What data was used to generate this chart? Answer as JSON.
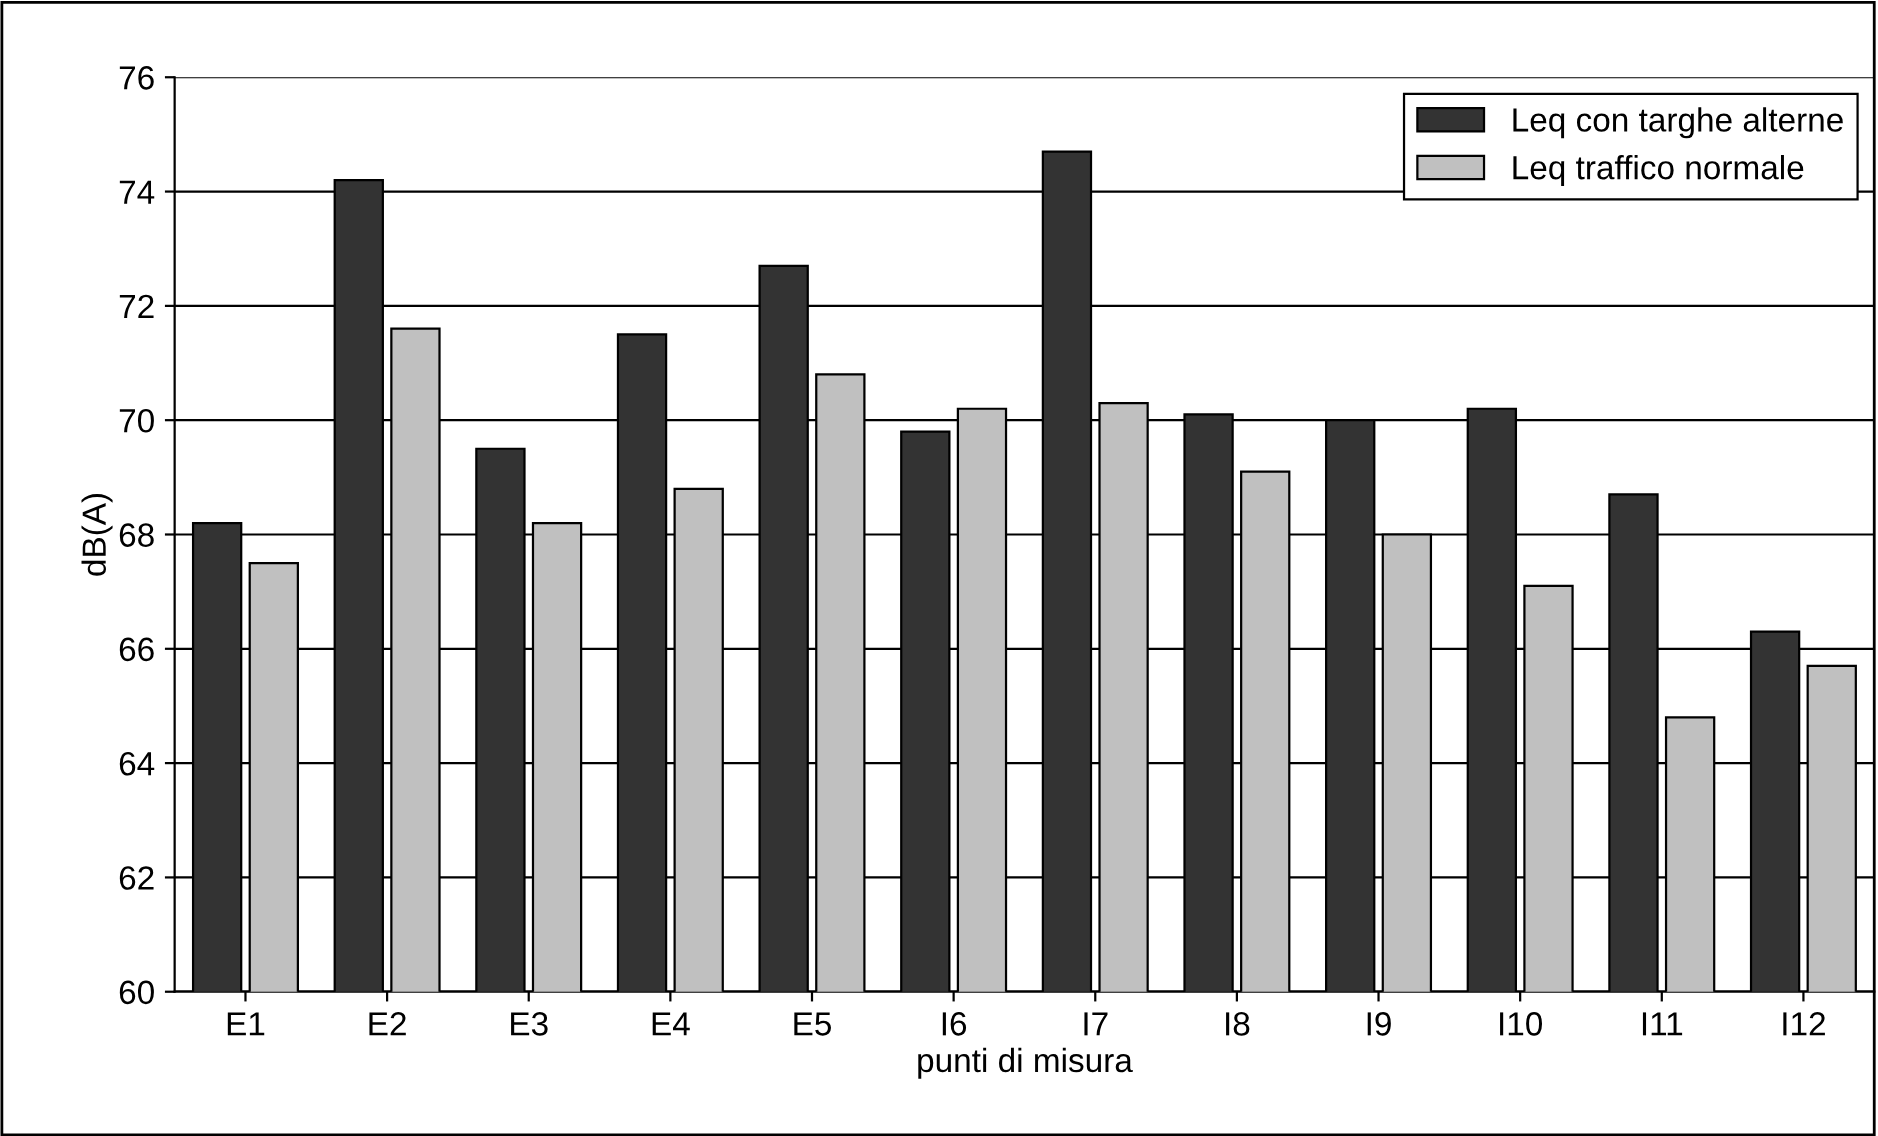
{
  "chart_data": {
    "type": "bar",
    "xlabel": "punti di misura",
    "ylabel": "dB(A)",
    "categories": [
      "E1",
      "E2",
      "E3",
      "E4",
      "E5",
      "I6",
      "I7",
      "I8",
      "I9",
      "I10",
      "I11",
      "I12"
    ],
    "series": [
      {
        "name": "Leq con targhe alterne",
        "color": "#333333",
        "values": [
          68.2,
          74.2,
          69.5,
          71.5,
          72.7,
          69.8,
          74.7,
          70.1,
          70.0,
          70.2,
          68.7,
          66.3
        ]
      },
      {
        "name": "Leq traffico normale",
        "color": "#c0c0c0",
        "values": [
          67.5,
          71.6,
          68.2,
          68.8,
          70.8,
          70.2,
          70.3,
          69.1,
          68.0,
          67.1,
          64.8,
          65.7
        ]
      }
    ],
    "ylim": [
      60,
      76
    ],
    "yticks": [
      60,
      62,
      64,
      66,
      68,
      70,
      72,
      74,
      76
    ],
    "grid": "y",
    "legend": "top right"
  }
}
